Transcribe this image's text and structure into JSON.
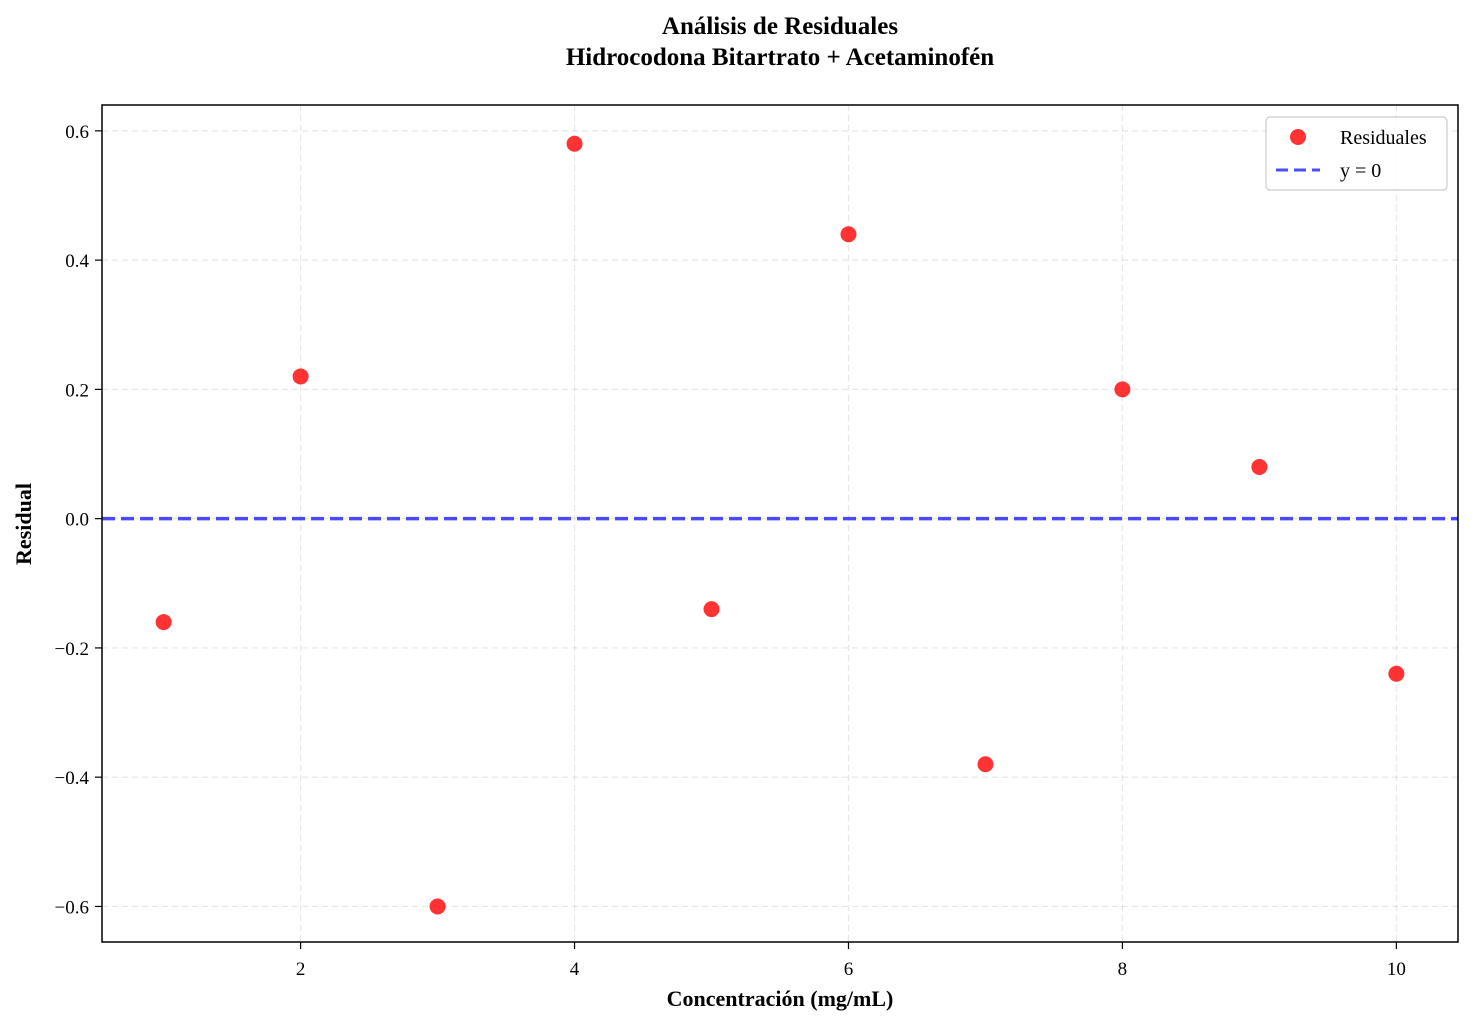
{
  "chart_data": {
    "type": "scatter",
    "title": "Análisis de Residuales",
    "subtitle": "Hidrocodona Bitartrato + Acetaminofén",
    "xlabel": "Concentración (mg/mL)",
    "ylabel": "Residual",
    "xlim": [
      0.55,
      10.45
    ],
    "ylim": [
      -0.655,
      0.64
    ],
    "x_ticks": [
      2,
      4,
      6,
      8,
      10
    ],
    "x_tick_labels": [
      "2",
      "4",
      "6",
      "8",
      "10"
    ],
    "y_ticks": [
      -0.6,
      -0.4,
      -0.2,
      0.0,
      0.2,
      0.4,
      0.6
    ],
    "y_tick_labels": [
      "−0.6",
      "−0.4",
      "−0.2",
      "0.0",
      "0.2",
      "0.4",
      "0.6"
    ],
    "grid": true,
    "legend_position": "top-right",
    "series": [
      {
        "name": "Residuales",
        "kind": "scatter",
        "color": "#ff0000",
        "x": [
          1,
          2,
          3,
          4,
          5,
          6,
          7,
          8,
          9,
          10
        ],
        "y": [
          -0.16,
          0.22,
          -0.6,
          0.58,
          -0.14,
          0.44,
          -0.38,
          0.2,
          0.08,
          -0.24
        ]
      },
      {
        "name": "y = 0",
        "kind": "hline",
        "color": "#0000ff",
        "y": 0
      }
    ]
  }
}
